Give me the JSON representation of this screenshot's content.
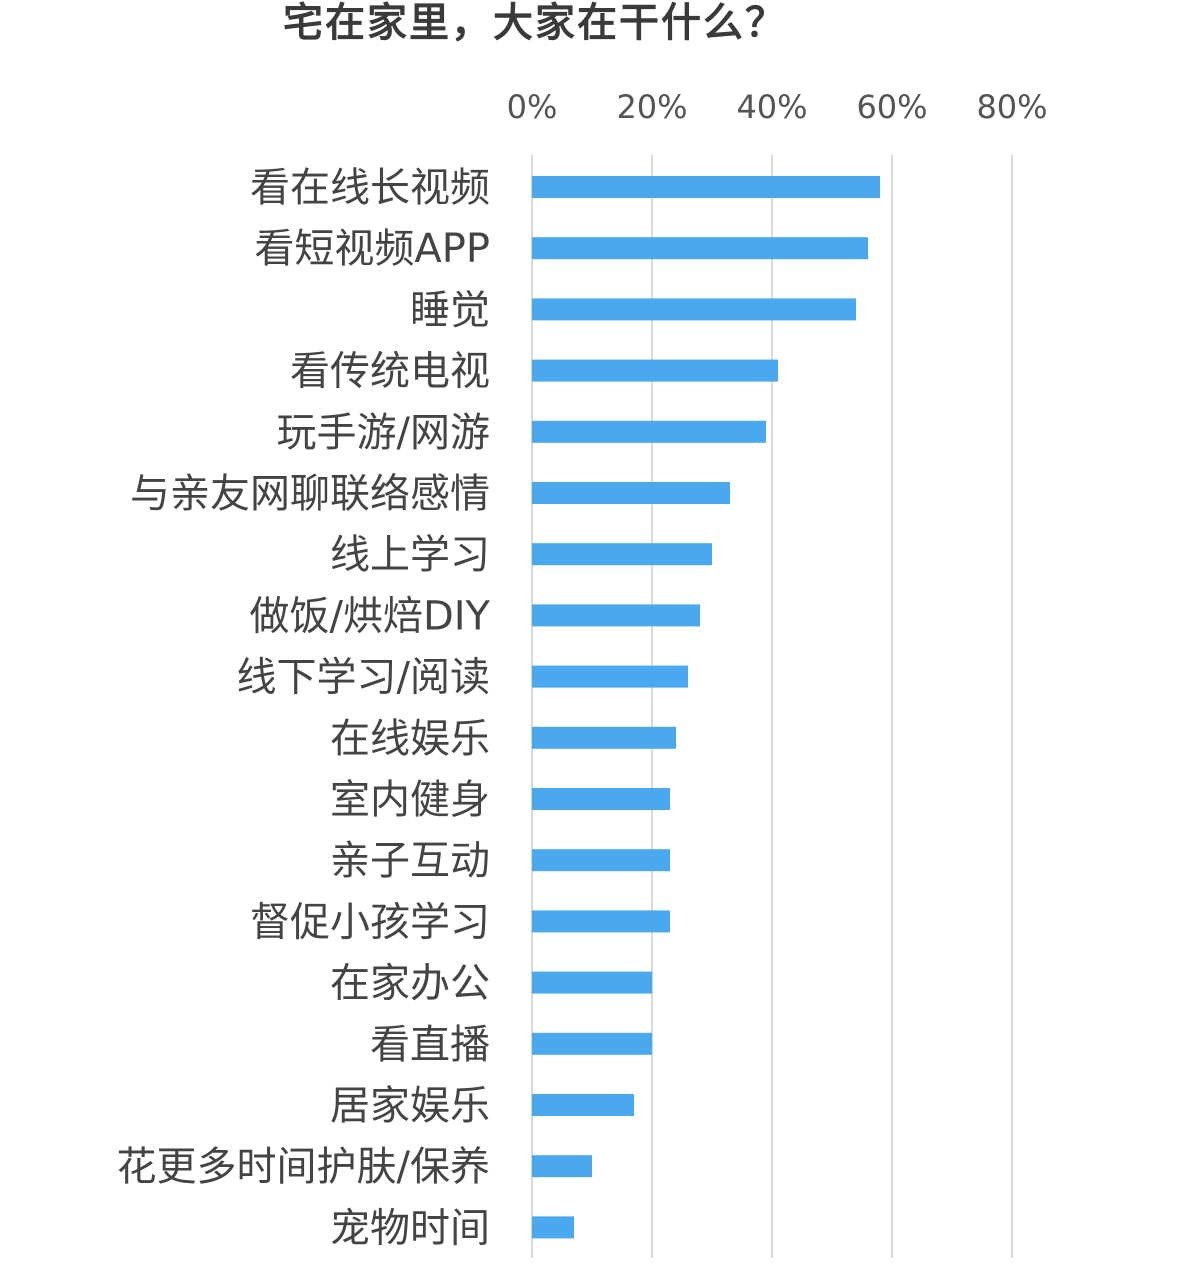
{
  "chart_data": {
    "type": "bar",
    "orientation": "horizontal",
    "title": "宅在家里，大家在干什么？",
    "categories": [
      "看在线长视频",
      "看短视频APP",
      "睡觉",
      "看传统电视",
      "玩手游/网游",
      "与亲友网聊联络感情",
      "线上学习",
      "做饭/烘焙DIY",
      "线下学习/阅读",
      "在线娱乐",
      "室内健身",
      "亲子互动",
      "督促小孩学习",
      "在家办公",
      "看直播",
      "居家娱乐",
      "花更多时间护肤/保养",
      "宠物时间"
    ],
    "values": [
      58,
      56,
      54,
      41,
      39,
      33,
      30,
      28,
      26,
      24,
      23,
      23,
      23,
      20,
      20,
      17,
      10,
      7
    ],
    "unit": "%",
    "xlim": [
      0,
      80
    ],
    "ticks": [
      "0%",
      "20%",
      "40%",
      "60%",
      "80%"
    ],
    "tick_values": [
      0,
      20,
      40,
      60,
      80
    ],
    "axis_position": "top",
    "grid": true,
    "bar_color": "#4aa8ee",
    "grid_color": "#d9d9d9"
  }
}
